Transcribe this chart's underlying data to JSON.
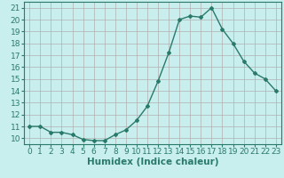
{
  "x": [
    0,
    1,
    2,
    3,
    4,
    5,
    6,
    7,
    8,
    9,
    10,
    11,
    12,
    13,
    14,
    15,
    16,
    17,
    18,
    19,
    20,
    21,
    22,
    23
  ],
  "y": [
    11,
    11,
    10.5,
    10.5,
    10.3,
    9.9,
    9.8,
    9.8,
    10.3,
    10.7,
    11.5,
    12.7,
    14.8,
    17.2,
    20.0,
    20.3,
    20.2,
    21.0,
    19.2,
    18.0,
    16.5,
    15.5,
    15.0,
    14.0
  ],
  "line_color": "#2a7a6a",
  "marker": "D",
  "marker_size": 2,
  "bg_color": "#c8eeee",
  "grid_color": "#b0b0b0",
  "xlabel": "Humidex (Indice chaleur)",
  "ylim": [
    9.5,
    21.5
  ],
  "xlim": [
    -0.5,
    23.5
  ],
  "yticks": [
    10,
    11,
    12,
    13,
    14,
    15,
    16,
    17,
    18,
    19,
    20,
    21
  ],
  "xticks": [
    0,
    1,
    2,
    3,
    4,
    5,
    6,
    7,
    8,
    9,
    10,
    11,
    12,
    13,
    14,
    15,
    16,
    17,
    18,
    19,
    20,
    21,
    22,
    23
  ],
  "tick_label_fontsize": 6.5,
  "xlabel_fontsize": 7.5
}
